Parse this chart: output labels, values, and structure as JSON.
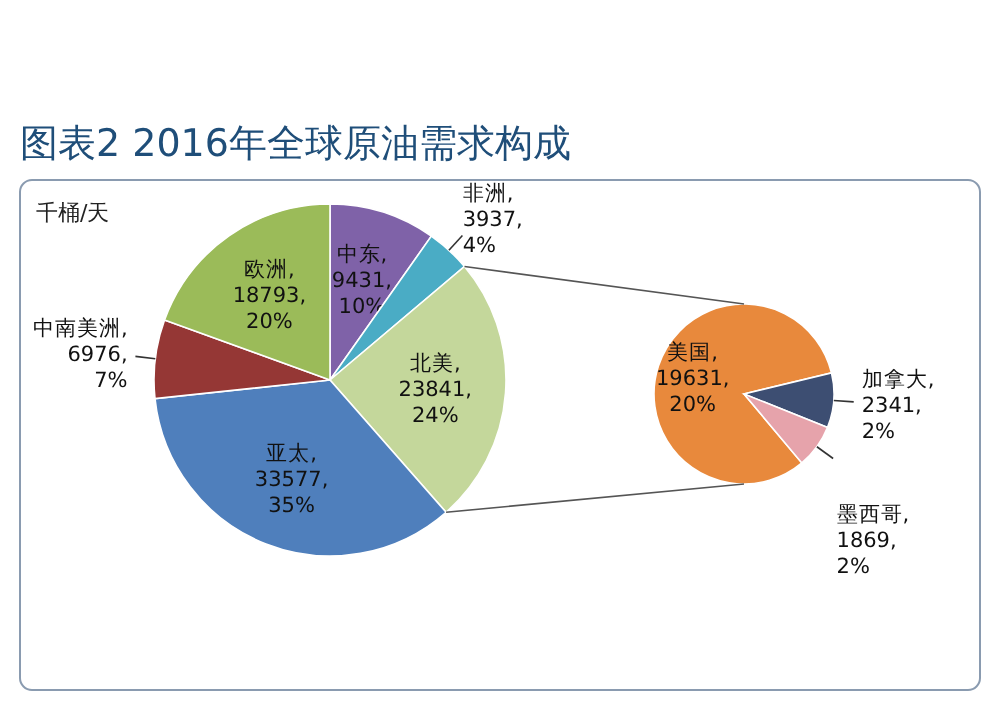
{
  "chart_data": [
    {
      "type": "pie",
      "title": "图表2 2016年全球原油需求构成",
      "annotations": [
        "千桶/天"
      ],
      "categories": [
        "中东",
        "非洲",
        "北美",
        "亚太",
        "中南美洲",
        "欧洲"
      ],
      "values": [
        9431,
        3937,
        23841,
        33577,
        6976,
        18793
      ],
      "value_labels": [
        ", 9431, 10%",
        ", 3937, 4%",
        ", 23841, 24%",
        ", 33577, 35%",
        ", 6976, 7%",
        ", 18793, 20%"
      ],
      "colors": [
        "#7f62a8",
        "#4aacc5",
        "#c4d79b",
        "#4f7fbc",
        "#953735",
        "#9bbb59"
      ]
    },
    {
      "type": "pie",
      "categories": [
        "美国",
        "加拿大",
        "墨西哥"
      ],
      "values": [
        19631,
        2341,
        1869
      ],
      "value_labels": [
        ", 19631, 20%",
        ", 2341, 2%",
        ", 1869, 2%"
      ],
      "colors": [
        "#e8893c",
        "#3d4e72",
        "#e6a3ab"
      ]
    }
  ]
}
